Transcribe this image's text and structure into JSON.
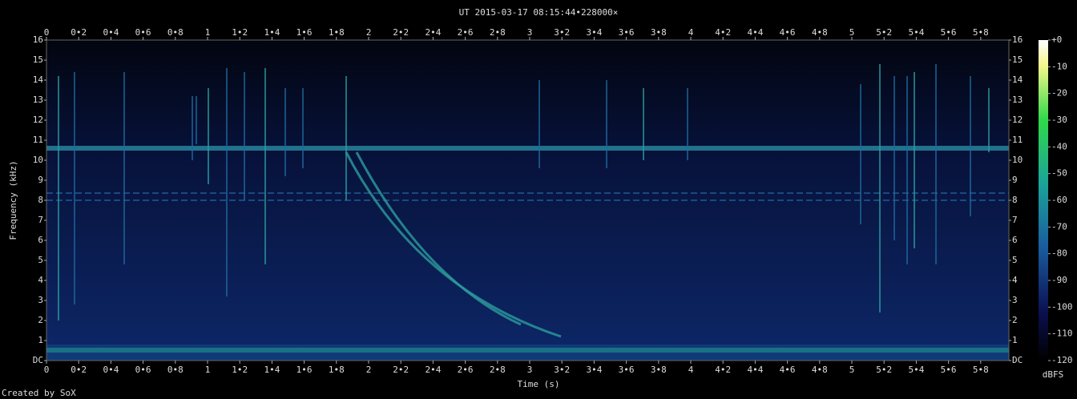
{
  "chart_data": {
    "type": "spectrogram",
    "title": "UT 2015-03-17 08:15:44•228000×",
    "x_label": "Time (s)",
    "y_label": "Frequency (kHz)",
    "footer": "Created by SoX",
    "xlim": [
      0,
      5.975
    ],
    "ylim": [
      0,
      16
    ],
    "xticks": [
      0,
      {
        "value": 0.2,
        "label": "0•2"
      },
      {
        "value": 0.4,
        "label": "0•4"
      },
      {
        "value": 0.6,
        "label": "0•6"
      },
      {
        "value": 0.8,
        "label": "0•8"
      },
      1,
      {
        "value": 1.2,
        "label": "1•2"
      },
      {
        "value": 1.4,
        "label": "1•4"
      },
      {
        "value": 1.6,
        "label": "1•6"
      },
      {
        "value": 1.8,
        "label": "1•8"
      },
      2,
      {
        "value": 2.2,
        "label": "2•2"
      },
      {
        "value": 2.4,
        "label": "2•4"
      },
      {
        "value": 2.6,
        "label": "2•6"
      },
      {
        "value": 2.8,
        "label": "2•8"
      },
      3,
      {
        "value": 3.2,
        "label": "3•2"
      },
      {
        "value": 3.4,
        "label": "3•4"
      },
      {
        "value": 3.6,
        "label": "3•6"
      },
      {
        "value": 3.8,
        "label": "3•8"
      },
      4,
      {
        "value": 4.2,
        "label": "4•2"
      },
      {
        "value": 4.4,
        "label": "4•4"
      },
      {
        "value": 4.6,
        "label": "4•6"
      },
      {
        "value": 4.8,
        "label": "4•8"
      },
      5,
      {
        "value": 5.2,
        "label": "5•2"
      },
      {
        "value": 5.4,
        "label": "5•4"
      },
      {
        "value": 5.6,
        "label": "5•6"
      },
      {
        "value": 5.8,
        "label": "5•8"
      }
    ],
    "yticks": [
      {
        "value": 0,
        "label": "DC"
      },
      1,
      2,
      3,
      4,
      5,
      6,
      7,
      8,
      9,
      10,
      11,
      12,
      13,
      14,
      15,
      16
    ],
    "colorbar": {
      "label": "dBFS",
      "lim": [
        -120,
        0
      ],
      "ticks": [
        {
          "value": 0,
          "label": "+0"
        },
        -10,
        -20,
        -30,
        -40,
        -50,
        -60,
        -70,
        -80,
        -90,
        -100,
        -110,
        -120
      ]
    }
  }
}
